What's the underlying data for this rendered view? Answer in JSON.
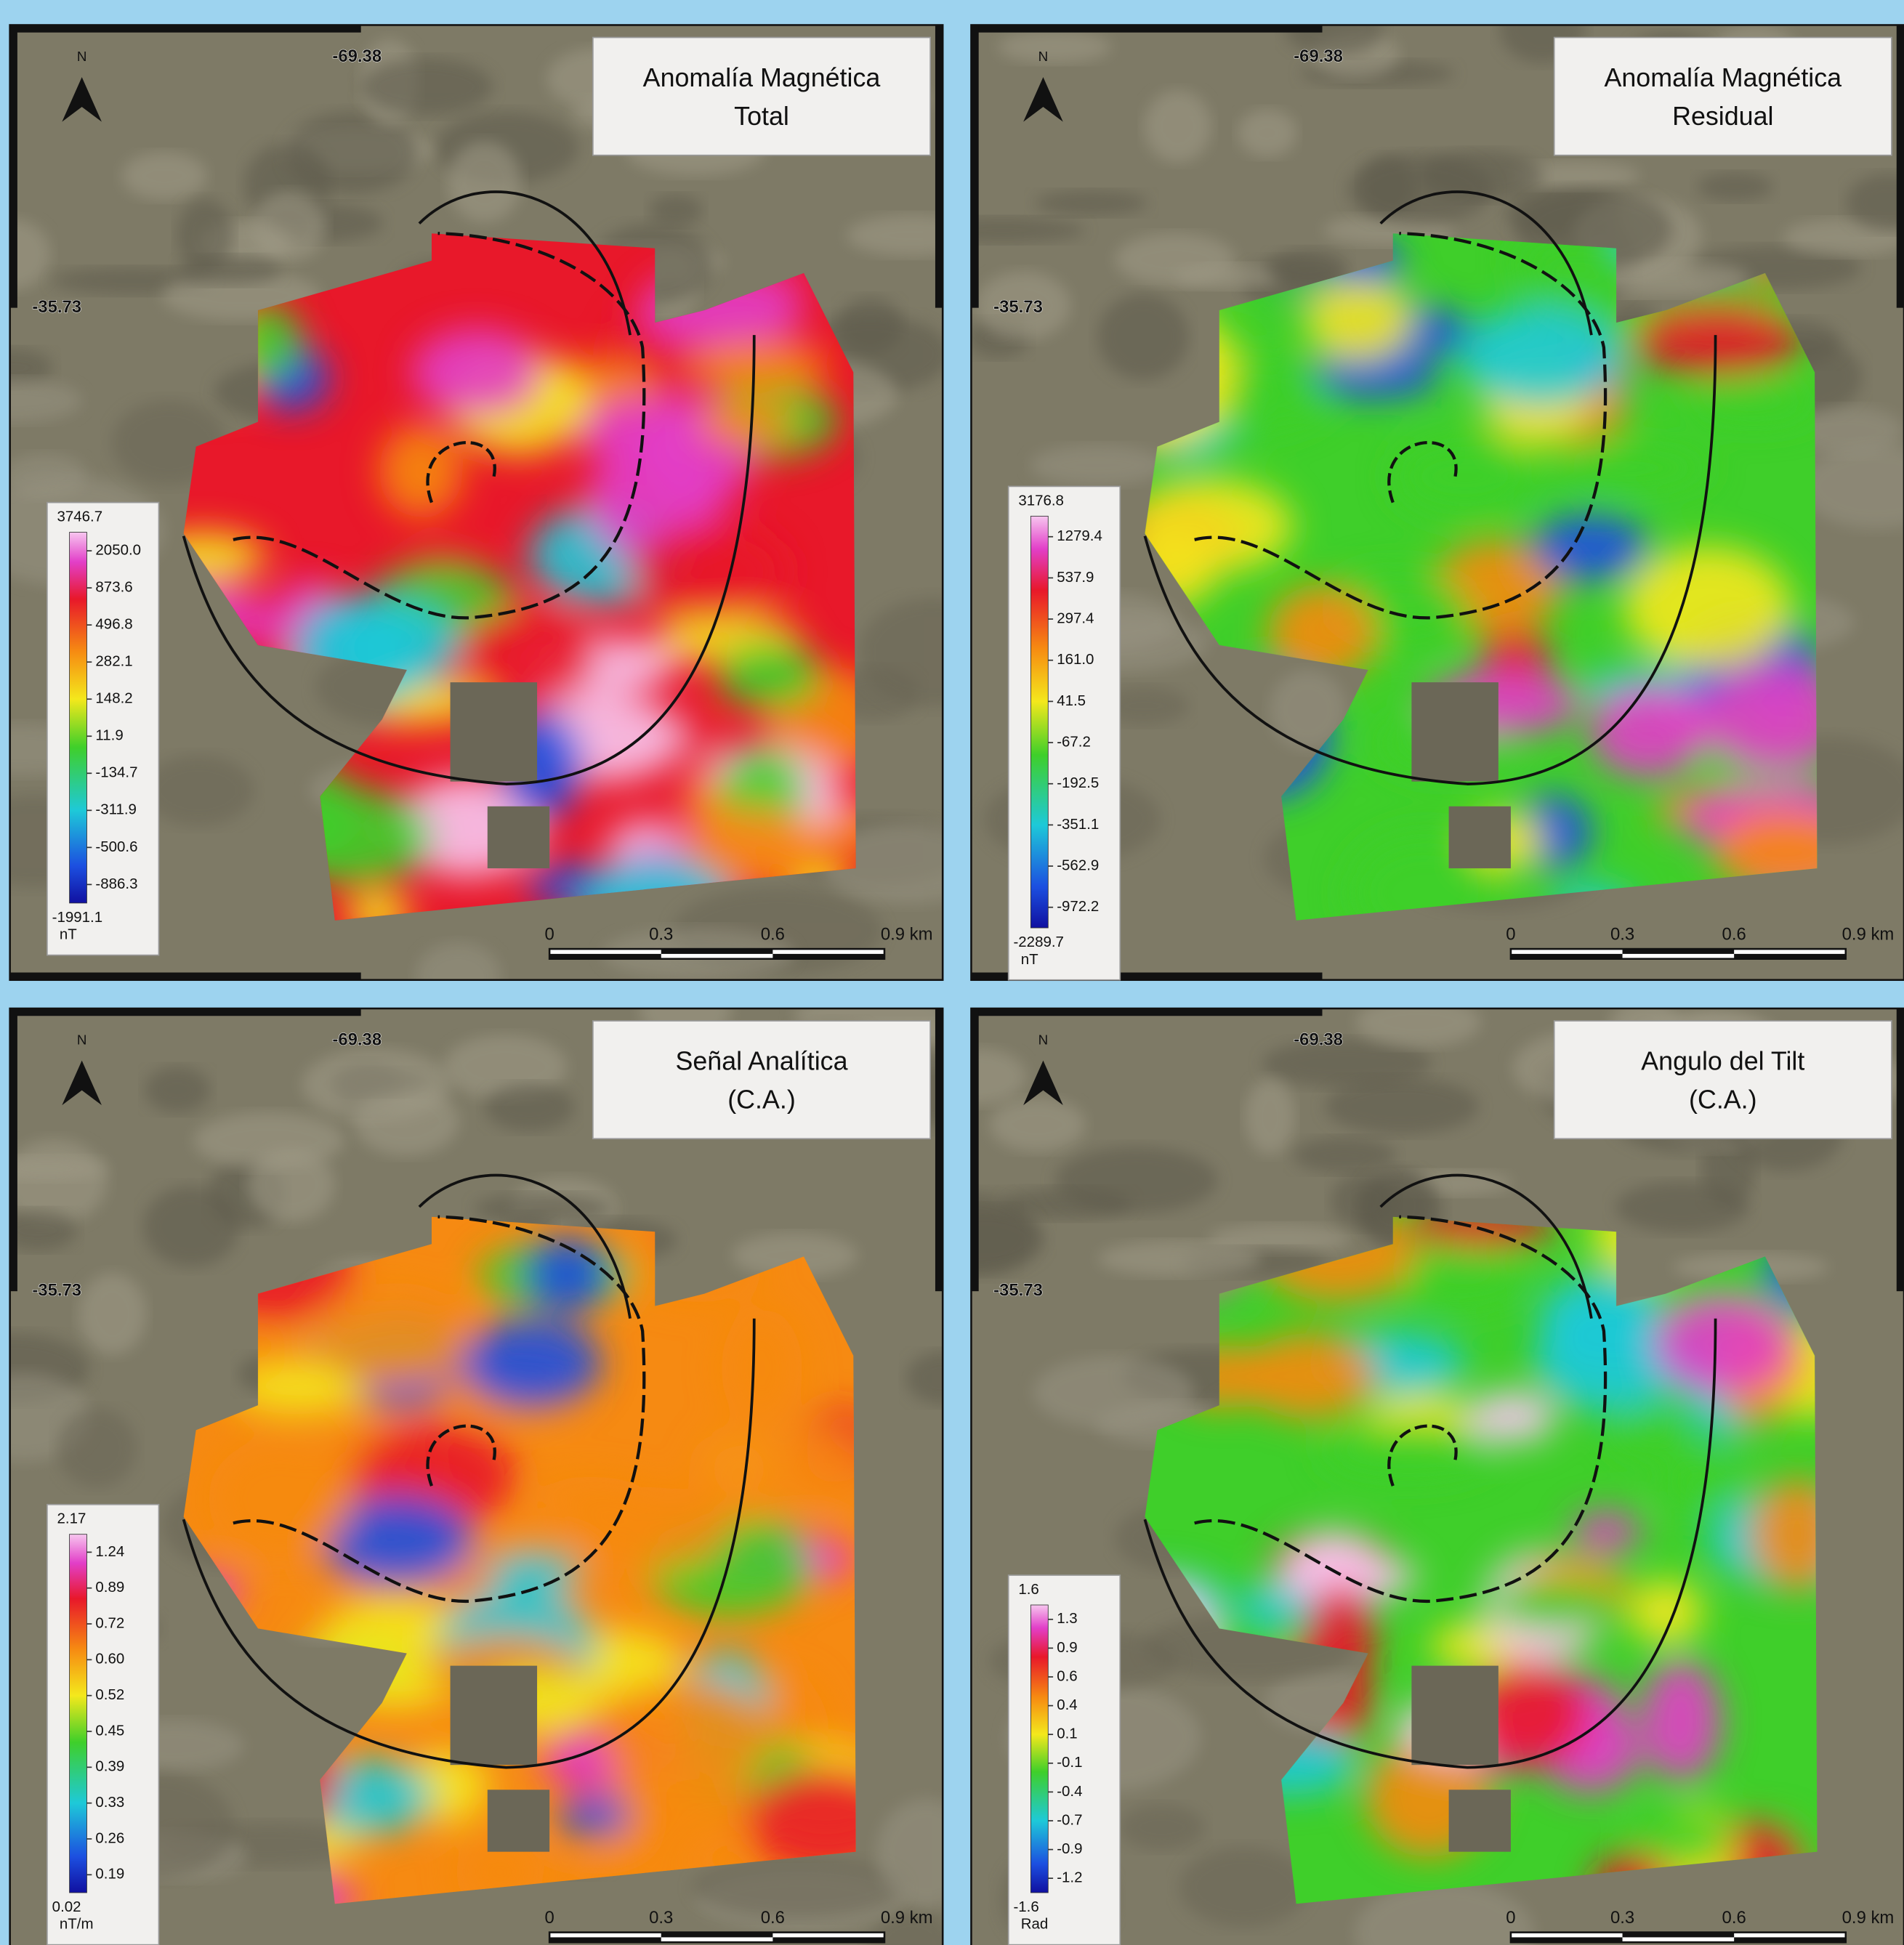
{
  "panels": [
    {
      "title": [
        "Anomalía Magnética",
        "Total"
      ],
      "north": "N",
      "lon": "-69.38",
      "lat": "-35.73",
      "legend": {
        "max": "3746.7",
        "labels": [
          "2050.0",
          "873.6",
          "496.8",
          "282.1",
          "148.2",
          "11.9",
          "-134.7",
          "-311.9",
          "-500.6",
          "-886.3"
        ],
        "min": "-1991.1",
        "unit": "nT"
      },
      "scale": [
        "0",
        "0.3",
        "0.6",
        "0.9 km"
      ]
    },
    {
      "title": [
        "Anomalía Magnética",
        "Residual"
      ],
      "north": "N",
      "lon": "-69.38",
      "lat": "-35.73",
      "legend": {
        "max": "3176.8",
        "labels": [
          "1279.4",
          "537.9",
          "297.4",
          "161.0",
          "41.5",
          "-67.2",
          "-192.5",
          "-351.1",
          "-562.9",
          "-972.2"
        ],
        "min": "-2289.7",
        "unit": "nT"
      },
      "scale": [
        "0",
        "0.3",
        "0.6",
        "0.9 km"
      ]
    },
    {
      "title": [
        "Señal Analítica",
        "(C.A.)"
      ],
      "north": "N",
      "lon": "-69.38",
      "lat": "-35.73",
      "legend": {
        "max": "2.17",
        "labels": [
          "1.24",
          "0.89",
          "0.72",
          "0.60",
          "0.52",
          "0.45",
          "0.39",
          "0.33",
          "0.26",
          "0.19"
        ],
        "min": "0.02",
        "unit": "nT/m"
      },
      "scale": [
        "0",
        "0.3",
        "0.6",
        "0.9 km"
      ]
    },
    {
      "title": [
        "Angulo del Tilt",
        "(C.A.)"
      ],
      "north": "N",
      "lon": "-69.38",
      "lat": "-35.73",
      "legend": {
        "max": "1.6",
        "labels": [
          "1.3",
          "0.9",
          "0.6",
          "0.4",
          "0.1",
          "-0.1",
          "-0.4",
          "-0.7",
          "-0.9",
          "-1.2"
        ],
        "min": "-1.6",
        "unit": "Rad"
      },
      "scale": [
        "0",
        "0.3",
        "0.6",
        "0.9 km"
      ]
    }
  ]
}
